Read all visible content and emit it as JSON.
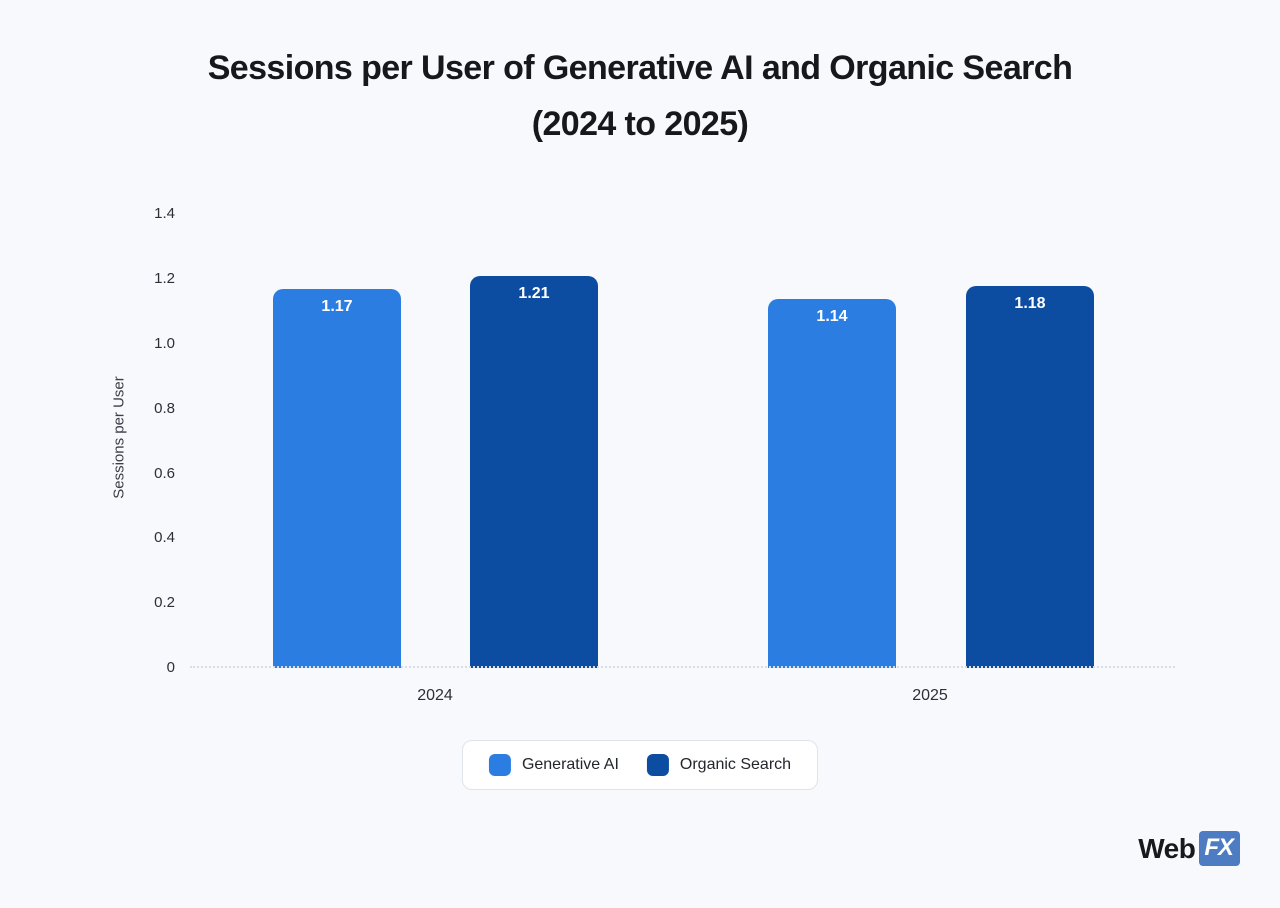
{
  "header": {
    "title_line1": "Sessions per User of Generative AI and Organic Search",
    "title_line2": "(2024 to 2025)"
  },
  "chart_data": {
    "type": "bar",
    "title": "Sessions per User of Generative AI and Organic Search (2024 to 2025)",
    "categories": [
      "2024",
      "2025"
    ],
    "series": [
      {
        "name": "Generative AI",
        "color": "#2b7de1",
        "values": [
          1.17,
          1.14
        ]
      },
      {
        "name": "Organic Search",
        "color": "#0c4da2",
        "values": [
          1.21,
          1.18
        ]
      }
    ],
    "xlabel": "",
    "ylabel": "Sessions per User",
    "ylim": [
      0,
      1.4
    ],
    "yticks": [
      0,
      0.2,
      0.4,
      0.6,
      0.8,
      1.0,
      1.2,
      1.4
    ],
    "ytick_labels": [
      "0",
      "0.2",
      "0.4",
      "0.6",
      "0.8",
      "1.0",
      "1.2",
      "1.4"
    ],
    "grid": false,
    "legend_position": "bottom",
    "value_label_format": "2-decimals"
  },
  "legend": {
    "items": [
      {
        "label": "Generative AI",
        "color": "#2b7de1"
      },
      {
        "label": "Organic Search",
        "color": "#0c4da2"
      }
    ]
  },
  "footer": {
    "logo_web": "Web",
    "logo_fx": "FX"
  },
  "colors": {
    "background": "#f7f9fc",
    "generative_ai": "#2b7de1",
    "organic_search": "#0c4da2",
    "logo_blue": "#4d7cc2"
  }
}
